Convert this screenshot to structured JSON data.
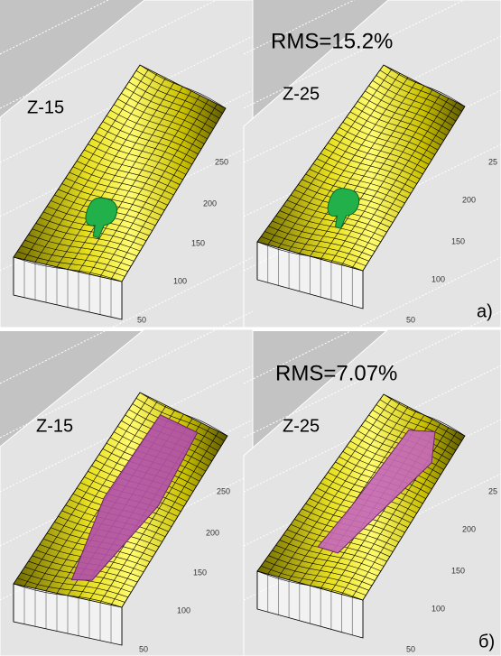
{
  "panels": [
    {
      "rms": "RMS=15.2%",
      "label": "а)",
      "plots": [
        {
          "title": "Z-15",
          "ticks": [
            "250",
            "200",
            "150",
            "100",
            "50"
          ]
        },
        {
          "title": "Z-25",
          "ticks": [
            "25",
            "200",
            "150",
            "100",
            "50"
          ]
        }
      ]
    },
    {
      "rms": "RMS=7.07%",
      "label": "б)",
      "plots": [
        {
          "title": "Z-15",
          "ticks": [
            "250",
            "200",
            "150",
            "100",
            "50"
          ]
        },
        {
          "title": "Z-25",
          "ticks": [
            "25",
            "200",
            "150",
            "100",
            "50"
          ]
        }
      ]
    }
  ]
}
